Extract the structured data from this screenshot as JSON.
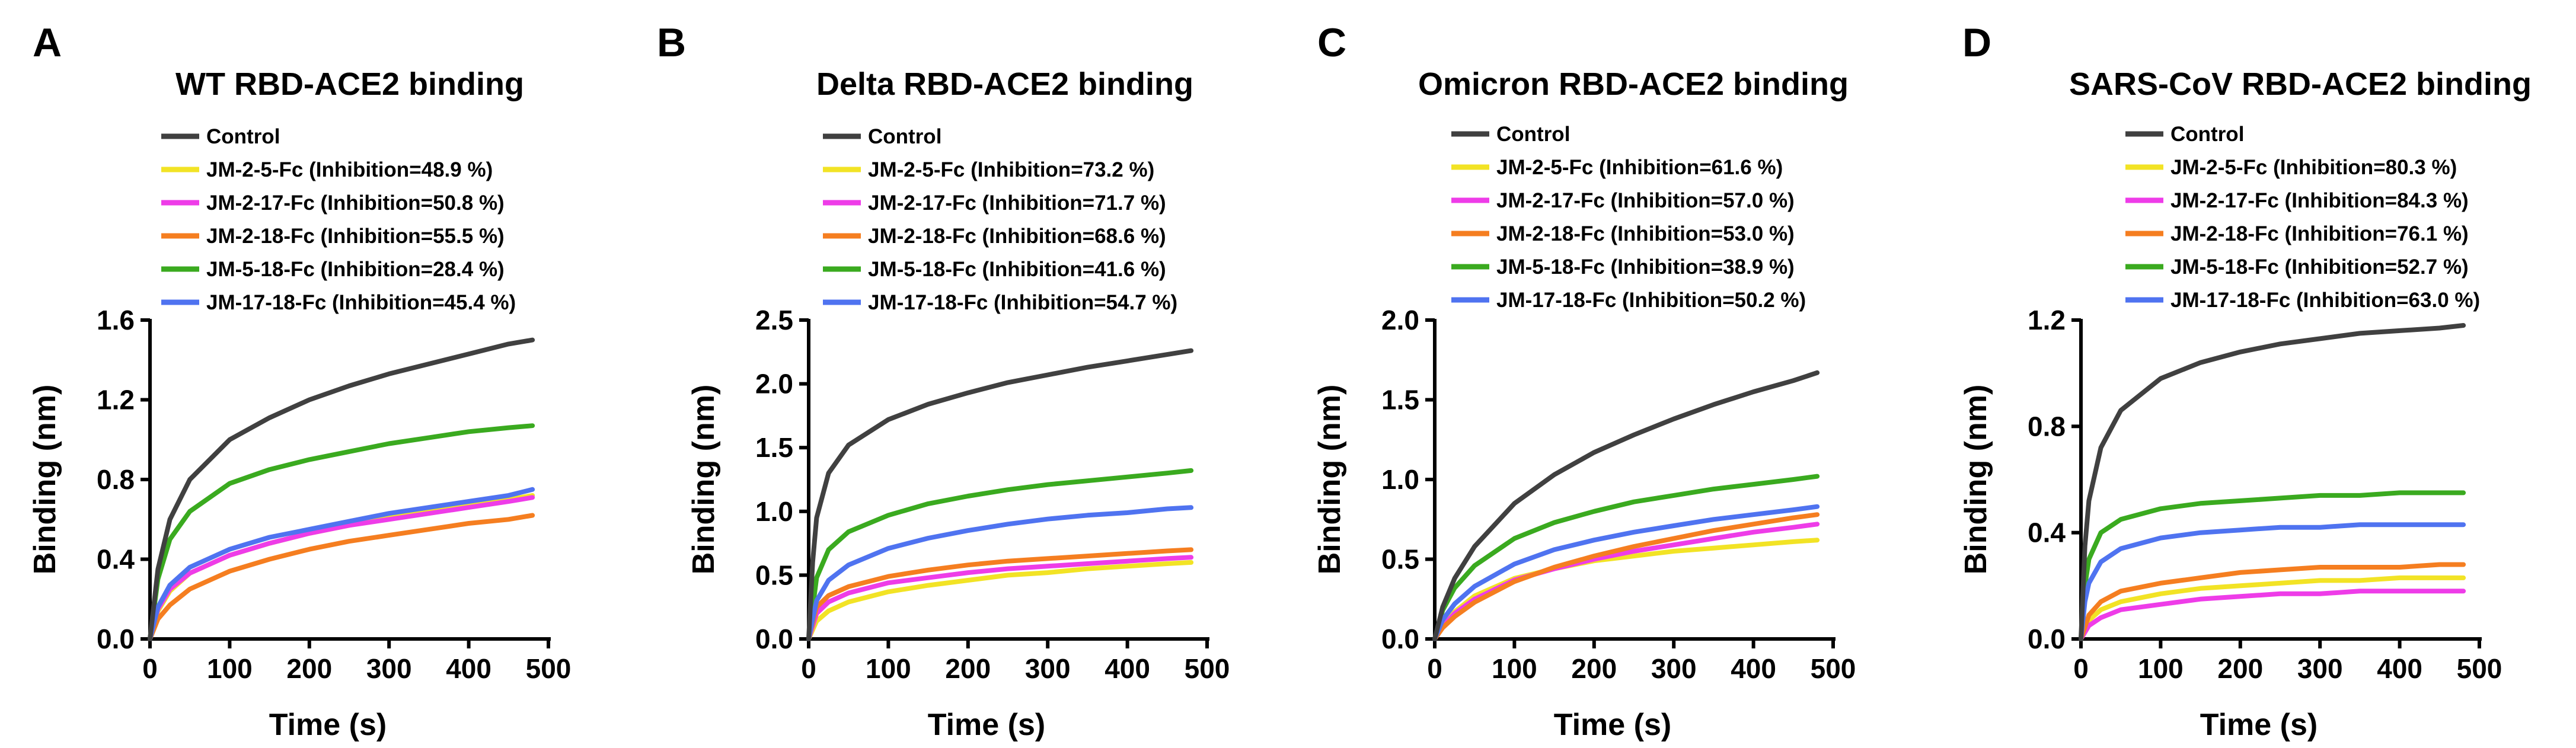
{
  "chart_data": [
    {
      "panel": "A",
      "type": "line",
      "title": "WT RBD-ACE2 binding",
      "xlabel": "Time (s)",
      "ylabel": "Binding (nm)",
      "xlim": [
        0,
        500
      ],
      "ylim": [
        0,
        1.6
      ],
      "xticks": [
        "0",
        "100",
        "200",
        "300",
        "400",
        "500"
      ],
      "yticks": [
        "0.0",
        "0.4",
        "0.8",
        "1.2",
        "1.6"
      ],
      "legend_position": "top",
      "series": [
        {
          "name": "Control",
          "color": "#404040",
          "legend": "Control",
          "x": [
            0,
            10,
            25,
            50,
            100,
            150,
            200,
            250,
            300,
            350,
            400,
            450,
            480
          ],
          "y": [
            0.0,
            0.35,
            0.6,
            0.8,
            1.0,
            1.11,
            1.2,
            1.27,
            1.33,
            1.38,
            1.43,
            1.48,
            1.5
          ]
        },
        {
          "name": "JM-2-5-Fc",
          "color": "#f2e325",
          "legend": "JM-2-5-Fc (Inhibition=48.9 %)",
          "x": [
            0,
            10,
            25,
            50,
            100,
            150,
            200,
            250,
            300,
            350,
            400,
            450,
            480
          ],
          "y": [
            0.0,
            0.14,
            0.24,
            0.33,
            0.42,
            0.48,
            0.53,
            0.57,
            0.61,
            0.64,
            0.67,
            0.7,
            0.72
          ]
        },
        {
          "name": "JM-2-17-Fc",
          "color": "#ee3ce8",
          "legend": "JM-2-17-Fc (Inhibition=50.8 %)",
          "x": [
            0,
            10,
            25,
            50,
            100,
            150,
            200,
            250,
            300,
            350,
            400,
            450,
            480
          ],
          "y": [
            0.0,
            0.15,
            0.25,
            0.33,
            0.42,
            0.48,
            0.53,
            0.57,
            0.6,
            0.63,
            0.66,
            0.69,
            0.71
          ]
        },
        {
          "name": "JM-2-18-Fc",
          "color": "#f57e20",
          "legend": "JM-2-18-Fc (Inhibition=55.5 %)",
          "x": [
            0,
            10,
            25,
            50,
            100,
            150,
            200,
            250,
            300,
            350,
            400,
            450,
            480
          ],
          "y": [
            0.0,
            0.1,
            0.17,
            0.25,
            0.34,
            0.4,
            0.45,
            0.49,
            0.52,
            0.55,
            0.58,
            0.6,
            0.62
          ]
        },
        {
          "name": "JM-5-18-Fc",
          "color": "#3aaa1f",
          "legend": "JM-5-18-Fc (Inhibition=28.4 %)",
          "x": [
            0,
            10,
            25,
            50,
            100,
            150,
            200,
            250,
            300,
            350,
            400,
            450,
            480
          ],
          "y": [
            0.0,
            0.3,
            0.5,
            0.64,
            0.78,
            0.85,
            0.9,
            0.94,
            0.98,
            1.01,
            1.04,
            1.06,
            1.07
          ]
        },
        {
          "name": "JM-17-18-Fc",
          "color": "#4f73f0",
          "legend": "JM-17-18-Fc (Inhibition=45.4 %)",
          "x": [
            0,
            10,
            25,
            50,
            100,
            150,
            200,
            250,
            300,
            350,
            400,
            450,
            480
          ],
          "y": [
            0.0,
            0.16,
            0.27,
            0.36,
            0.45,
            0.51,
            0.55,
            0.59,
            0.63,
            0.66,
            0.69,
            0.72,
            0.75
          ]
        }
      ]
    },
    {
      "panel": "B",
      "type": "line",
      "title": "Delta RBD-ACE2 binding",
      "xlabel": "Time (s)",
      "ylabel": "Binding (nm)",
      "xlim": [
        0,
        500
      ],
      "ylim": [
        0,
        2.5
      ],
      "xticks": [
        "0",
        "100",
        "200",
        "300",
        "400",
        "500"
      ],
      "yticks": [
        "0.0",
        "0.5",
        "1.0",
        "1.5",
        "2.0",
        "2.5"
      ],
      "legend_position": "top",
      "series": [
        {
          "name": "Control",
          "color": "#404040",
          "legend": "Control",
          "x": [
            0,
            5,
            10,
            25,
            50,
            100,
            150,
            200,
            250,
            300,
            350,
            400,
            450,
            480
          ],
          "y": [
            0.0,
            0.6,
            0.95,
            1.3,
            1.52,
            1.72,
            1.84,
            1.93,
            2.01,
            2.07,
            2.13,
            2.18,
            2.23,
            2.26
          ]
        },
        {
          "name": "JM-2-5-Fc",
          "color": "#f2e325",
          "legend": "JM-2-5-Fc (Inhibition=73.2 %)",
          "x": [
            0,
            10,
            25,
            50,
            100,
            150,
            200,
            250,
            300,
            350,
            400,
            450,
            480
          ],
          "y": [
            0.0,
            0.14,
            0.22,
            0.29,
            0.37,
            0.42,
            0.46,
            0.5,
            0.52,
            0.55,
            0.57,
            0.59,
            0.6
          ]
        },
        {
          "name": "JM-2-17-Fc",
          "color": "#ee3ce8",
          "legend": "JM-2-17-Fc (Inhibition=71.7 %)",
          "x": [
            0,
            10,
            25,
            50,
            100,
            150,
            200,
            250,
            300,
            350,
            400,
            450,
            480
          ],
          "y": [
            0.0,
            0.2,
            0.29,
            0.36,
            0.44,
            0.48,
            0.52,
            0.55,
            0.57,
            0.59,
            0.61,
            0.63,
            0.64
          ]
        },
        {
          "name": "JM-2-18-Fc",
          "color": "#f57e20",
          "legend": "JM-2-18-Fc (Inhibition=68.6 %)",
          "x": [
            0,
            10,
            25,
            50,
            100,
            150,
            200,
            250,
            300,
            350,
            400,
            450,
            480
          ],
          "y": [
            0.0,
            0.25,
            0.34,
            0.41,
            0.49,
            0.54,
            0.58,
            0.61,
            0.63,
            0.65,
            0.67,
            0.69,
            0.7
          ]
        },
        {
          "name": "JM-5-18-Fc",
          "color": "#3aaa1f",
          "legend": "JM-5-18-Fc (Inhibition=41.6 %)",
          "x": [
            0,
            10,
            25,
            50,
            100,
            150,
            200,
            250,
            300,
            350,
            400,
            450,
            480
          ],
          "y": [
            0.0,
            0.48,
            0.7,
            0.84,
            0.97,
            1.06,
            1.12,
            1.17,
            1.21,
            1.24,
            1.27,
            1.3,
            1.32
          ]
        },
        {
          "name": "JM-17-18-Fc",
          "color": "#4f73f0",
          "legend": "JM-17-18-Fc (Inhibition=54.7 %)",
          "x": [
            0,
            10,
            25,
            50,
            100,
            150,
            200,
            250,
            300,
            350,
            400,
            450,
            480
          ],
          "y": [
            0.0,
            0.3,
            0.46,
            0.58,
            0.71,
            0.79,
            0.85,
            0.9,
            0.94,
            0.97,
            0.99,
            1.02,
            1.03
          ]
        }
      ]
    },
    {
      "panel": "C",
      "type": "line",
      "title": "Omicron RBD-ACE2 binding",
      "xlabel": "Time (s)",
      "ylabel": "Binding (nm)",
      "xlim": [
        0,
        500
      ],
      "ylim": [
        0,
        2.0
      ],
      "xticks": [
        "0",
        "100",
        "200",
        "300",
        "400",
        "500"
      ],
      "yticks": [
        "0.0",
        "0.5",
        "1.0",
        "1.5",
        "2.0"
      ],
      "legend_position": "top",
      "series": [
        {
          "name": "Control",
          "color": "#404040",
          "legend": "Control",
          "x": [
            0,
            10,
            25,
            50,
            100,
            150,
            200,
            250,
            300,
            350,
            400,
            450,
            480
          ],
          "y": [
            0.0,
            0.2,
            0.38,
            0.58,
            0.85,
            1.03,
            1.17,
            1.28,
            1.38,
            1.47,
            1.55,
            1.62,
            1.67
          ]
        },
        {
          "name": "JM-2-5-Fc",
          "color": "#f2e325",
          "legend": "JM-2-5-Fc (Inhibition=61.6 %)",
          "x": [
            0,
            10,
            25,
            50,
            100,
            150,
            200,
            250,
            300,
            350,
            400,
            450,
            480
          ],
          "y": [
            0.0,
            0.08,
            0.17,
            0.27,
            0.38,
            0.44,
            0.49,
            0.52,
            0.55,
            0.57,
            0.59,
            0.61,
            0.62
          ]
        },
        {
          "name": "JM-2-17-Fc",
          "color": "#ee3ce8",
          "legend": "JM-2-17-Fc (Inhibition=57.0 %)",
          "x": [
            0,
            10,
            25,
            50,
            100,
            150,
            200,
            250,
            300,
            350,
            400,
            450,
            480
          ],
          "y": [
            0.0,
            0.08,
            0.16,
            0.25,
            0.37,
            0.44,
            0.5,
            0.55,
            0.59,
            0.63,
            0.67,
            0.7,
            0.72
          ]
        },
        {
          "name": "JM-2-18-Fc",
          "color": "#f57e20",
          "legend": "JM-2-18-Fc (Inhibition=53.0 %)",
          "x": [
            0,
            10,
            25,
            50,
            100,
            150,
            200,
            250,
            300,
            350,
            400,
            450,
            480
          ],
          "y": [
            0.0,
            0.07,
            0.14,
            0.23,
            0.36,
            0.45,
            0.52,
            0.58,
            0.63,
            0.68,
            0.72,
            0.76,
            0.78
          ]
        },
        {
          "name": "JM-5-18-Fc",
          "color": "#3aaa1f",
          "legend": "JM-5-18-Fc (Inhibition=38.9 %)",
          "x": [
            0,
            10,
            25,
            50,
            100,
            150,
            200,
            250,
            300,
            350,
            400,
            450,
            480
          ],
          "y": [
            0.0,
            0.18,
            0.32,
            0.46,
            0.63,
            0.73,
            0.8,
            0.86,
            0.9,
            0.94,
            0.97,
            1.0,
            1.02
          ]
        },
        {
          "name": "JM-17-18-Fc",
          "color": "#4f73f0",
          "legend": "JM-17-18-Fc (Inhibition=50.2 %)",
          "x": [
            0,
            10,
            25,
            50,
            100,
            150,
            200,
            250,
            300,
            350,
            400,
            450,
            480
          ],
          "y": [
            0.0,
            0.12,
            0.22,
            0.33,
            0.47,
            0.56,
            0.62,
            0.67,
            0.71,
            0.75,
            0.78,
            0.81,
            0.83
          ]
        }
      ]
    },
    {
      "panel": "D",
      "type": "line",
      "title": "SARS-CoV RBD-ACE2 binding",
      "xlabel": "Time (s)",
      "ylabel": "Binding (nm)",
      "xlim": [
        0,
        500
      ],
      "ylim": [
        0,
        1.2
      ],
      "xticks": [
        "0",
        "100",
        "200",
        "300",
        "400",
        "500"
      ],
      "yticks": [
        "0.0",
        "0.4",
        "0.8",
        "1.2"
      ],
      "legend_position": "top",
      "series": [
        {
          "name": "Control",
          "color": "#404040",
          "legend": "Control",
          "x": [
            0,
            5,
            10,
            25,
            50,
            100,
            150,
            200,
            250,
            300,
            350,
            400,
            450,
            480
          ],
          "y": [
            0.0,
            0.35,
            0.52,
            0.72,
            0.86,
            0.98,
            1.04,
            1.08,
            1.11,
            1.13,
            1.15,
            1.16,
            1.17,
            1.18
          ]
        },
        {
          "name": "JM-2-5-Fc",
          "color": "#f2e325",
          "legend": "JM-2-5-Fc (Inhibition=80.3 %)",
          "x": [
            0,
            10,
            25,
            50,
            100,
            150,
            200,
            250,
            300,
            350,
            400,
            450,
            480
          ],
          "y": [
            0.0,
            0.07,
            0.11,
            0.14,
            0.17,
            0.19,
            0.2,
            0.21,
            0.22,
            0.22,
            0.23,
            0.23,
            0.23
          ]
        },
        {
          "name": "JM-2-17-Fc",
          "color": "#ee3ce8",
          "legend": "JM-2-17-Fc (Inhibition=84.3 %)",
          "x": [
            0,
            10,
            25,
            50,
            100,
            150,
            200,
            250,
            300,
            350,
            400,
            450,
            480
          ],
          "y": [
            0.0,
            0.05,
            0.08,
            0.11,
            0.13,
            0.15,
            0.16,
            0.17,
            0.17,
            0.18,
            0.18,
            0.18,
            0.18
          ]
        },
        {
          "name": "JM-2-18-Fc",
          "color": "#f57e20",
          "legend": "JM-2-18-Fc (Inhibition=76.1 %)",
          "x": [
            0,
            10,
            25,
            50,
            100,
            150,
            200,
            250,
            300,
            350,
            400,
            450,
            480
          ],
          "y": [
            0.0,
            0.09,
            0.14,
            0.18,
            0.21,
            0.23,
            0.25,
            0.26,
            0.27,
            0.27,
            0.27,
            0.28,
            0.28
          ]
        },
        {
          "name": "JM-5-18-Fc",
          "color": "#3aaa1f",
          "legend": "JM-5-18-Fc (Inhibition=52.7 %)",
          "x": [
            0,
            5,
            10,
            25,
            50,
            100,
            150,
            200,
            250,
            300,
            350,
            400,
            450,
            480
          ],
          "y": [
            0.0,
            0.2,
            0.3,
            0.4,
            0.45,
            0.49,
            0.51,
            0.52,
            0.53,
            0.54,
            0.54,
            0.55,
            0.55,
            0.55
          ]
        },
        {
          "name": "JM-17-18-Fc",
          "color": "#4f73f0",
          "legend": "JM-17-18-Fc (Inhibition=63.0 %)",
          "x": [
            0,
            5,
            10,
            25,
            50,
            100,
            150,
            200,
            250,
            300,
            350,
            400,
            450,
            480
          ],
          "y": [
            0.0,
            0.14,
            0.21,
            0.29,
            0.34,
            0.38,
            0.4,
            0.41,
            0.42,
            0.42,
            0.43,
            0.43,
            0.43,
            0.43
          ]
        }
      ]
    }
  ]
}
